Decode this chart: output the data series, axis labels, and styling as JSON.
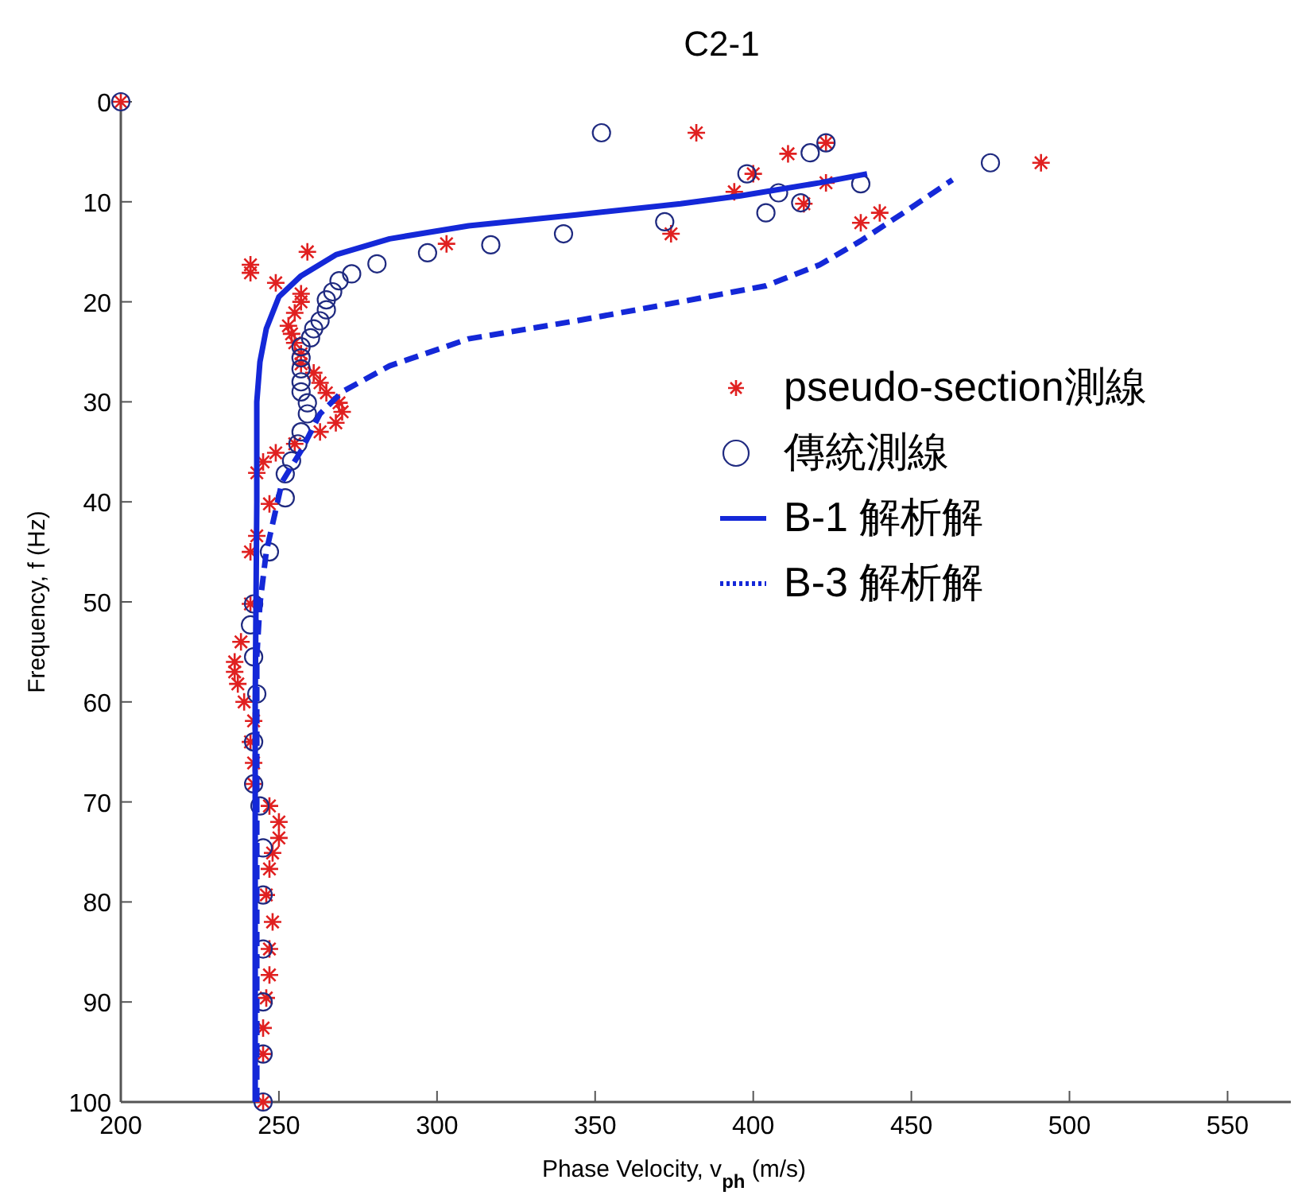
{
  "chart_data": {
    "type": "scatter",
    "title": "C2-1",
    "xlabel": "Phase Velocity, v$_{ph}$ (m/s)",
    "ylabel": "Frequency, f (Hz)",
    "xlim": [
      200,
      570
    ],
    "ylim": [
      100,
      0
    ],
    "xticks": [
      200,
      250,
      300,
      350,
      400,
      450,
      500,
      550
    ],
    "yticks": [
      0,
      10,
      20,
      30,
      40,
      50,
      60,
      70,
      80,
      90,
      100
    ],
    "grid": false,
    "legend": "right",
    "series": [
      {
        "name": "pseudo-section測線",
        "type": "scatter",
        "marker": "cross",
        "color": "#e02020",
        "x": [
          200,
          382,
          423,
          411,
          400,
          491,
          394,
          423,
          416,
          440,
          434,
          374,
          303,
          259,
          241,
          241,
          249,
          257,
          257,
          255,
          253,
          254,
          255,
          257,
          257,
          261,
          263,
          265,
          269,
          270,
          268,
          263,
          255,
          249,
          245,
          243,
          247,
          243,
          241,
          241,
          238,
          236,
          236,
          237,
          239,
          242,
          241,
          242,
          242,
          247,
          250,
          250,
          248,
          247,
          246,
          248,
          247,
          247,
          246,
          245,
          245,
          245
        ],
        "values": [
          0,
          3.1,
          4.1,
          5.2,
          7.2,
          6.1,
          9,
          8.1,
          10.2,
          11.1,
          12.1,
          13.2,
          14.2,
          15,
          16.3,
          17.1,
          18.1,
          19.2,
          20,
          21.1,
          22.4,
          23.2,
          24.1,
          25.2,
          26.2,
          27.1,
          28.1,
          29.1,
          30.1,
          31,
          32.1,
          33,
          34.2,
          35.1,
          36,
          37.1,
          40.2,
          43.4,
          45,
          50.2,
          54,
          56,
          57,
          58.2,
          60,
          61.9,
          64,
          66.1,
          68.2,
          70.4,
          72,
          73.6,
          75.1,
          76.7,
          79.3,
          82,
          84.7,
          87.3,
          89.6,
          92.6,
          95.2,
          100
        ]
      },
      {
        "name": "傳統測線",
        "type": "scatter",
        "marker": "circle",
        "color": "#1f2a80",
        "x": [
          200,
          352,
          423,
          418,
          398,
          475,
          434,
          408,
          415,
          404,
          372,
          340,
          317,
          297,
          281,
          273,
          269,
          267,
          265,
          265,
          263,
          261,
          260,
          257,
          257,
          257,
          257,
          257,
          259,
          259,
          257,
          256,
          254,
          252,
          252,
          247,
          242,
          241,
          242,
          243,
          242,
          242,
          244,
          245,
          245,
          245,
          245,
          245,
          245
        ],
        "values": [
          0,
          3.1,
          4.1,
          5.1,
          7.2,
          6.1,
          8.2,
          9.1,
          10.1,
          11.1,
          12,
          13.2,
          14.3,
          15.1,
          16.2,
          17.2,
          17.9,
          19,
          19.8,
          20.8,
          21.9,
          22.7,
          23.6,
          24.5,
          25.6,
          26.7,
          28,
          29,
          30.1,
          31.2,
          33,
          34.2,
          35.9,
          37.2,
          39.6,
          45,
          50.2,
          52.3,
          55.5,
          59.2,
          64,
          68.2,
          70.4,
          74.6,
          79.3,
          84.7,
          90,
          95.2,
          100
        ]
      },
      {
        "name": "B-1 解析解",
        "type": "line",
        "marker": "none",
        "line_style": "solid",
        "color": "#1428d8",
        "x": [
          242.5,
          242.5,
          243,
          243,
          244,
          246,
          250,
          257,
          268,
          285,
          310,
          344,
          377,
          396,
          421,
          436
        ],
        "values": [
          100,
          60,
          40,
          30,
          26,
          22.7,
          19.5,
          17.4,
          15.3,
          13.7,
          12.4,
          11.3,
          10.2,
          9.4,
          8.1,
          7.2
        ]
      },
      {
        "name": "B-3 解析解",
        "type": "line",
        "marker": "none",
        "line_style": "dashed",
        "color": "#1428d8",
        "x": [
          243,
          243,
          244,
          246,
          251,
          257,
          263,
          270,
          285,
          310,
          344,
          377,
          404,
          421,
          434,
          448,
          463
        ],
        "values": [
          100,
          55.5,
          50.2,
          45,
          38,
          34.9,
          31.2,
          29,
          26.4,
          23.7,
          21.9,
          20,
          18.4,
          16.3,
          13.9,
          11,
          7.8
        ]
      }
    ]
  }
}
